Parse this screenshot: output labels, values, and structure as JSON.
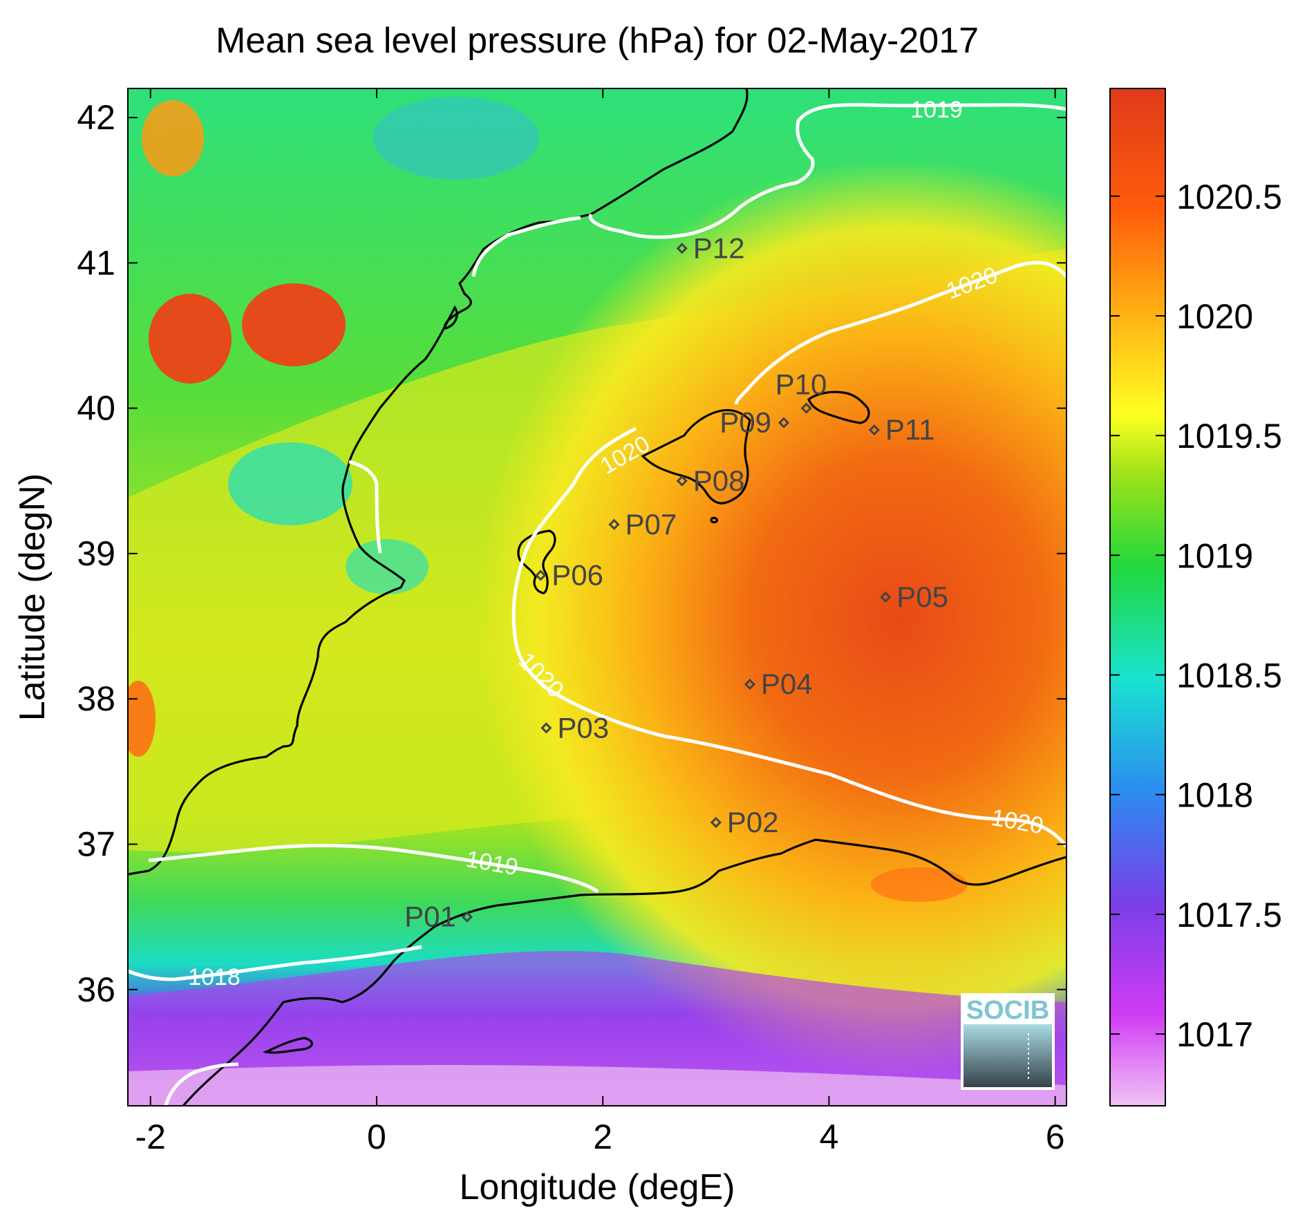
{
  "title": "Mean sea level pressure (hPa) for 02-May-2017",
  "xlabel": "Longitude (degE)",
  "ylabel": "Latitude (degN)",
  "map": {
    "lon_range": [
      -2.2,
      6.1
    ],
    "lat_range": [
      35.2,
      42.2
    ],
    "x_ticks": [
      -2,
      0,
      2,
      4,
      6
    ],
    "x_tick_labels": [
      "-2",
      "0",
      "2",
      "4",
      "6"
    ],
    "y_ticks": [
      36,
      37,
      38,
      39,
      40,
      41,
      42
    ],
    "y_tick_labels": [
      "36",
      "37",
      "38",
      "39",
      "40",
      "41",
      "42"
    ]
  },
  "colorbar": {
    "range": [
      1016.7,
      1020.95
    ],
    "ticks": [
      1017,
      1017.5,
      1018,
      1018.5,
      1019,
      1019.5,
      1020,
      1020.5
    ],
    "tick_labels": [
      "1017",
      "1017.5",
      "1018",
      "1018.5",
      "1019",
      "1019.5",
      "1020",
      "1020.5"
    ],
    "colors": [
      "#f1c3f3",
      "#cf3cf4",
      "#7a3ee8",
      "#2b8df0",
      "#19e3d0",
      "#22d83c",
      "#9ee21a",
      "#ffff22",
      "#ffa812",
      "#ff5d0b",
      "#df3a1a"
    ]
  },
  "contour_labels": {
    "c1019_north": "1019",
    "c1020_north": "1020",
    "c1020_west": "1020",
    "c1020_sw": "1020",
    "c1020_south": "1020",
    "c1019_south": "1019",
    "c1018": "1018"
  },
  "stations": [
    {
      "id": "P01",
      "lon": 0.8,
      "lat": 36.5
    },
    {
      "id": "P02",
      "lon": 3.0,
      "lat": 37.15
    },
    {
      "id": "P03",
      "lon": 1.5,
      "lat": 37.8
    },
    {
      "id": "P04",
      "lon": 3.3,
      "lat": 38.1
    },
    {
      "id": "P05",
      "lon": 4.5,
      "lat": 38.7
    },
    {
      "id": "P06",
      "lon": 1.45,
      "lat": 38.85
    },
    {
      "id": "P07",
      "lon": 2.1,
      "lat": 39.2
    },
    {
      "id": "P08",
      "lon": 2.7,
      "lat": 39.5
    },
    {
      "id": "P09",
      "lon": 3.6,
      "lat": 39.9
    },
    {
      "id": "P10",
      "lon": 3.8,
      "lat": 40.0
    },
    {
      "id": "P11",
      "lon": 4.4,
      "lat": 39.85
    },
    {
      "id": "P12",
      "lon": 2.7,
      "lat": 41.1
    }
  ],
  "logo": {
    "text": "SOCIB"
  }
}
